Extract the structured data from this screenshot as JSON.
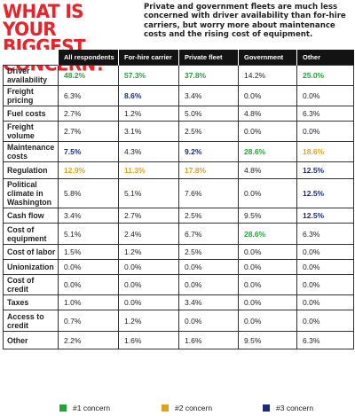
{
  "header": {
    "headline_line1": "WHAT IS YOUR",
    "headline_line2": "BIGGEST CONCERN?",
    "blurb": "Private and government fleets are much less concerned with driver availability than for-hire carriers, but worry more about maintenance costs and the rising cost of equipment."
  },
  "colors": {
    "headline": "#e8232a",
    "header_bg": "#131313",
    "rank1": "#27a23a",
    "rank2": "#e0a21c",
    "rank3": "#1d2a7a"
  },
  "chart_data": {
    "type": "table",
    "columns": [
      "All respondents",
      "For-hire carrier",
      "Private fleet",
      "Government",
      "Other"
    ],
    "rows": [
      {
        "label": [
          "Driver",
          "availability"
        ],
        "values": [
          "48.2%",
          "57.3%",
          "37.8%",
          "14.2%",
          "25.0%"
        ],
        "ranks": [
          1,
          1,
          1,
          0,
          1
        ]
      },
      {
        "label": [
          "Freight",
          "pricing"
        ],
        "values": [
          "6.3%",
          "8.6%",
          "3.4%",
          "0.0%",
          "0.0%"
        ],
        "ranks": [
          0,
          3,
          0,
          0,
          0
        ]
      },
      {
        "label": [
          "Fuel costs"
        ],
        "values": [
          "2.7%",
          "1.2%",
          "5.0%",
          "4.8%",
          "6.3%"
        ],
        "ranks": [
          0,
          0,
          0,
          0,
          0
        ]
      },
      {
        "label": [
          "Freight",
          "volume"
        ],
        "values": [
          "2.7%",
          "3.1%",
          "2.5%",
          "0.0%",
          "0.0%"
        ],
        "ranks": [
          0,
          0,
          0,
          0,
          0
        ]
      },
      {
        "label": [
          "Maintenance",
          "costs"
        ],
        "values": [
          "7.5%",
          "4.3%",
          "9.2%",
          "28.6%",
          "18.6%"
        ],
        "ranks": [
          3,
          0,
          3,
          1,
          2
        ]
      },
      {
        "label": [
          "Regulation"
        ],
        "values": [
          "12.9%",
          "11.3%",
          "17.8%",
          "4.8%",
          "12.5%"
        ],
        "ranks": [
          2,
          2,
          2,
          0,
          3
        ]
      },
      {
        "label": [
          "Political",
          "climate in",
          "Washington"
        ],
        "values": [
          "5.8%",
          "5.1%",
          "7.6%",
          "0.0%",
          "12.5%"
        ],
        "ranks": [
          0,
          0,
          0,
          0,
          3
        ]
      },
      {
        "label": [
          "Cash flow"
        ],
        "values": [
          "3.4%",
          "2.7%",
          "2.5%",
          "9.5%",
          "12.5%"
        ],
        "ranks": [
          0,
          0,
          0,
          0,
          3
        ]
      },
      {
        "label": [
          "Cost of",
          "equipment"
        ],
        "values": [
          "5.1%",
          "2.4%",
          "6.7%",
          "28.6%",
          "6.3%"
        ],
        "ranks": [
          0,
          0,
          0,
          1,
          0
        ]
      },
      {
        "label": [
          "Cost of labor"
        ],
        "values": [
          "1.5%",
          "1.2%",
          "2.5%",
          "0.0%",
          "0.0%"
        ],
        "ranks": [
          0,
          0,
          0,
          0,
          0
        ]
      },
      {
        "label": [
          "Unionization"
        ],
        "values": [
          "0.0%",
          "0.0%",
          "0.0%",
          "0.0%",
          "0.0%"
        ],
        "ranks": [
          0,
          0,
          0,
          0,
          0
        ]
      },
      {
        "label": [
          "Cost of credit"
        ],
        "values": [
          "0.0%",
          "0.0%",
          "0.0%",
          "0.0%",
          "0.0%"
        ],
        "ranks": [
          0,
          0,
          0,
          0,
          0
        ]
      },
      {
        "label": [
          "Taxes"
        ],
        "values": [
          "1.0%",
          "0.0%",
          "3.4%",
          "0.0%",
          "0.0%"
        ],
        "ranks": [
          0,
          0,
          0,
          0,
          0
        ]
      },
      {
        "label": [
          "Access to",
          "credit"
        ],
        "values": [
          "0.7%",
          "1.2%",
          "0.0%",
          "0.0%",
          "0.0%"
        ],
        "ranks": [
          0,
          0,
          0,
          0,
          0
        ]
      },
      {
        "label": [
          "Other"
        ],
        "values": [
          "2.2%",
          "1.6%",
          "1.6%",
          "9.5%",
          "6.3%"
        ],
        "ranks": [
          0,
          0,
          0,
          0,
          0
        ]
      }
    ],
    "legend": [
      {
        "label": "#1 concern",
        "color": "#27a23a"
      },
      {
        "label": "#2 concern",
        "color": "#e0a21c"
      },
      {
        "label": "#3 concern",
        "color": "#1d2a7a"
      }
    ]
  }
}
